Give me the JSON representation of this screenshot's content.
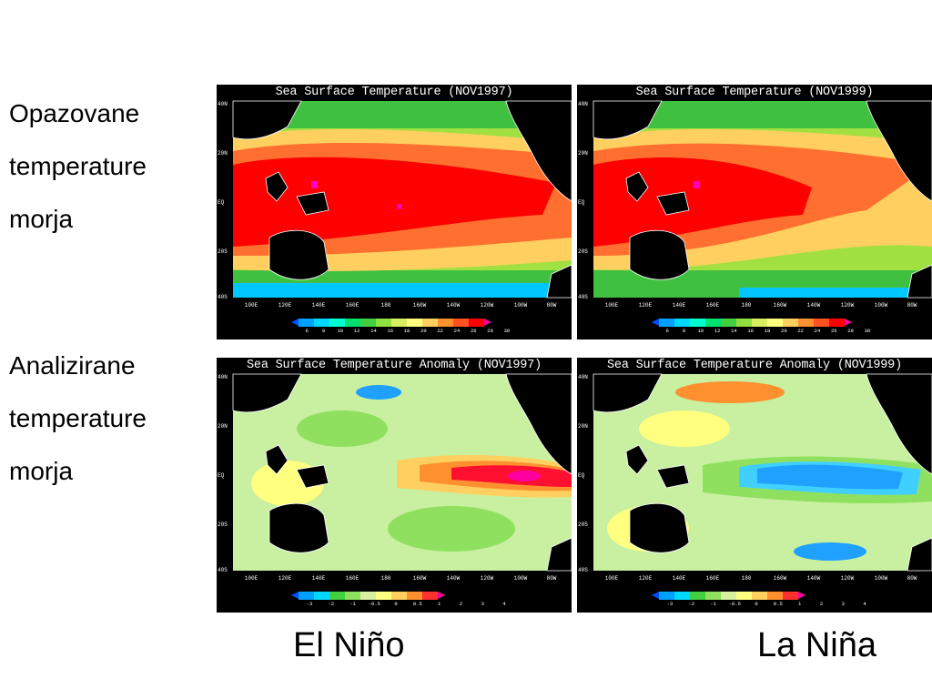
{
  "side_labels": {
    "observed": [
      "Opazovane",
      "temperature",
      "morja"
    ],
    "analyzed": [
      "Analizirane",
      "temperature",
      "morja"
    ]
  },
  "panels": {
    "sst_1997": {
      "title": "Sea Surface Temperature (NOV1997)"
    },
    "sst_1999": {
      "title": "Sea Surface Temperature (NOV1999)"
    },
    "anom_1997": {
      "title": "Sea Surface Temperature Anomaly (NOV1997)"
    },
    "anom_1999": {
      "title": "Sea Surface Temperature Anomaly (NOV1999)"
    }
  },
  "lat_ticks": [
    "40N",
    "20N",
    "EQ",
    "20S",
    "40S"
  ],
  "lon_ticks": [
    "100E",
    "120E",
    "140E",
    "160E",
    "180",
    "160W",
    "140W",
    "120W",
    "100W",
    "80W"
  ],
  "sst_colorbar": {
    "ticks": [
      "6",
      "8",
      "10",
      "12",
      "14",
      "16",
      "18",
      "20",
      "22",
      "24",
      "26",
      "28",
      "30"
    ],
    "colors": [
      "#0050ff",
      "#00a0ff",
      "#00d8ff",
      "#00ffd0",
      "#00e070",
      "#40d040",
      "#90e040",
      "#d8f060",
      "#ffff80",
      "#ffd060",
      "#ff9030",
      "#ff5020",
      "#ff0000",
      "#ff00a0"
    ]
  },
  "anom_colorbar": {
    "ticks": [
      "-3",
      "-2",
      "-1",
      "-0.5",
      "0",
      "0.5",
      "1",
      "2",
      "3",
      "4"
    ],
    "colors": [
      "#0050ff",
      "#00a0ff",
      "#00d8ff",
      "#40d040",
      "#90e060",
      "#d8f0a0",
      "#ffff80",
      "#ffd060",
      "#ff9030",
      "#ff3030",
      "#ff00a0"
    ]
  },
  "map_colors": {
    "land": "#000000",
    "coast": "#ffffff",
    "warm_pool": "#ff0000",
    "warm": "#ff7030",
    "mid": "#ffd060",
    "cool": "#a0e040",
    "cold": "#40c040",
    "very_cold": "#00c8ff",
    "anomaly_neutral": "#c8f0a0",
    "anomaly_hot": "#ff1030",
    "anomaly_extreme": "#ff00a0",
    "anomaly_cold": "#20a0ff"
  },
  "bottom_labels": {
    "el_nino": "El Niño",
    "la_nina": "La Niña"
  }
}
